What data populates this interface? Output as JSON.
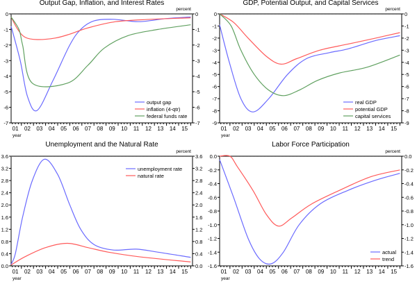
{
  "colors": {
    "blue": "#6a6aff",
    "red": "#ff5a5a",
    "green": "#5fa05f",
    "axis": "#000000"
  },
  "chart_data": [
    {
      "type": "line",
      "title": "Output Gap, Inflation, and Interest Rates",
      "units_label": "percent",
      "xlabel": "year",
      "x_tick_labels": [
        "01",
        "02",
        "03",
        "04",
        "05",
        "06",
        "07",
        "08",
        "09",
        "10",
        "11",
        "12",
        "13",
        "14",
        "15"
      ],
      "ylim": [
        -7,
        0
      ],
      "y_ticks": [
        "0",
        "-1",
        "-2",
        "-3",
        "-4",
        "-5",
        "-6",
        "-7"
      ],
      "legend_position": "bottom-right",
      "series": [
        {
          "name": "output gap",
          "color": "#6a6aff",
          "x": [
            2001.15,
            2001.9,
            2002.5,
            2003.3,
            2004.6,
            2006.0,
            2006.9,
            2008.0,
            2009.6,
            2011.7,
            2014.0,
            2016.0
          ],
          "y": [
            -0.8,
            -3.0,
            -5.3,
            -6.2,
            -4.3,
            -2.0,
            -1.0,
            -0.45,
            -0.35,
            -0.5,
            -0.3,
            -0.2
          ]
        },
        {
          "name": "inflation (4-qtr)",
          "color": "#ff5a5a",
          "x": [
            2001.15,
            2001.7,
            2002.3,
            2003.3,
            2004.8,
            2006.0,
            2007.5,
            2009.8,
            2012.7,
            2016.0
          ],
          "y": [
            -0.2,
            -1.0,
            -1.5,
            -1.65,
            -1.55,
            -1.3,
            -0.9,
            -0.5,
            -0.35,
            -0.25
          ]
        },
        {
          "name": "federal funds rate",
          "color": "#5fa05f",
          "x": [
            2001.15,
            2001.8,
            2002.1,
            2002.9,
            2005.8,
            2007.5,
            2008.85,
            2010.8,
            2013.3,
            2016.0
          ],
          "y": [
            -0.2,
            -1.0,
            -2.0,
            -4.45,
            -4.45,
            -3.3,
            -2.2,
            -1.4,
            -1.0,
            -0.7
          ]
        }
      ]
    },
    {
      "type": "line",
      "title": "GDP, Potential Output, and Capital Services",
      "units_label": "percent",
      "xlabel": "year",
      "x_tick_labels": [
        "01",
        "02",
        "03",
        "04",
        "05",
        "06",
        "07",
        "08",
        "09",
        "10",
        "11",
        "12",
        "13",
        "14",
        "15"
      ],
      "ylim": [
        -9,
        0
      ],
      "y_ticks": [
        "0",
        "-1",
        "-2",
        "-3",
        "-4",
        "-5",
        "-6",
        "-7",
        "-8",
        "-9"
      ],
      "legend_position": "bottom-right",
      "series": [
        {
          "name": "real GDP",
          "color": "#6a6aff",
          "x": [
            2001.15,
            2001.95,
            2002.9,
            2003.9,
            2005.2,
            2006.75,
            2008.3,
            2010.2,
            2011.7,
            2014.0,
            2016.0
          ],
          "y": [
            -0.9,
            -4.0,
            -7.0,
            -8.1,
            -7.0,
            -5.0,
            -3.7,
            -3.2,
            -2.9,
            -2.2,
            -1.8
          ]
        },
        {
          "name": "potential GDP",
          "color": "#ff5a5a",
          "x": [
            2001.15,
            2002.3,
            2003.5,
            2005.0,
            2006.2,
            2007.5,
            2009.4,
            2011.7,
            2014.0,
            2016.0
          ],
          "y": [
            0,
            -0.7,
            -2.0,
            -3.5,
            -4.15,
            -3.7,
            -3.0,
            -2.5,
            -2.0,
            -1.55
          ]
        },
        {
          "name": "capital services",
          "color": "#5fa05f",
          "x": [
            2001.15,
            2002.1,
            2002.9,
            2004.0,
            2005.2,
            2006.4,
            2007.7,
            2009.2,
            2010.95,
            2013.3,
            2016.0
          ],
          "y": [
            0,
            -1.0,
            -3.0,
            -5.0,
            -6.3,
            -6.75,
            -6.3,
            -5.5,
            -4.9,
            -4.4,
            -3.4
          ]
        }
      ]
    },
    {
      "type": "line",
      "title": "Unemployment and the Natural Rate",
      "units_label": "percent",
      "xlabel": "year",
      "x_tick_labels": [
        "01",
        "02",
        "03",
        "04",
        "05",
        "06",
        "07",
        "08",
        "09",
        "10",
        "11",
        "12",
        "13",
        "14",
        "15"
      ],
      "ylim": [
        0,
        3.6
      ],
      "y_ticks": [
        "3.6",
        "3.2",
        "2.8",
        "2.4",
        "2.0",
        "1.6",
        "1.2",
        "0.8",
        "0.4",
        "0.0"
      ],
      "legend_position": "top-right",
      "series": [
        {
          "name": "unemployment rate",
          "color": "#6a6aff",
          "x": [
            2001.15,
            2001.5,
            2002.1,
            2002.9,
            2003.9,
            2005.0,
            2006.0,
            2006.9,
            2008.0,
            2009.6,
            2011.5,
            2013.3,
            2016.0
          ],
          "y": [
            0.05,
            0.4,
            1.6,
            2.8,
            3.5,
            3.0,
            2.0,
            1.2,
            0.7,
            0.52,
            0.55,
            0.45,
            0.28
          ]
        },
        {
          "name": "natural rate",
          "color": "#ff5a5a",
          "x": [
            2001.15,
            2002.3,
            2004.0,
            2005.8,
            2007.5,
            2009.2,
            2011.7,
            2016.0
          ],
          "y": [
            0.03,
            0.3,
            0.6,
            0.74,
            0.6,
            0.45,
            0.3,
            0.13
          ]
        }
      ]
    },
    {
      "type": "line",
      "title": "Labor Force Participation",
      "units_label": "percent",
      "xlabel": "year",
      "x_tick_labels": [
        "01",
        "02",
        "03",
        "04",
        "05",
        "06",
        "07",
        "08",
        "09",
        "10",
        "11",
        "12",
        "13",
        "14",
        "15"
      ],
      "ylim": [
        -1.6,
        0
      ],
      "y_ticks": [
        "0.0",
        "-0.2",
        "-0.4",
        "-0.6",
        "-0.8",
        "-1.0",
        "-1.2",
        "-1.4",
        "-1.6"
      ],
      "legend_position": "bottom-right",
      "series": [
        {
          "name": "actual",
          "color": "#6a6aff",
          "x": [
            2001.15,
            2002.3,
            2003.5,
            2004.45,
            2005.4,
            2006.4,
            2007.7,
            2009.4,
            2011.7,
            2014.0,
            2016.0
          ],
          "y": [
            -0.05,
            -0.6,
            -1.2,
            -1.5,
            -1.57,
            -1.4,
            -1.0,
            -0.7,
            -0.5,
            -0.35,
            -0.25
          ]
        },
        {
          "name": "trend",
          "color": "#ff5a5a",
          "x": [
            2001.15,
            2002.0,
            2002.6,
            2003.9,
            2005.0,
            2006.0,
            2007.1,
            2008.7,
            2011.0,
            2013.6,
            2016.0
          ],
          "y": [
            0,
            0,
            -0.15,
            -0.5,
            -0.85,
            -1.02,
            -0.9,
            -0.7,
            -0.5,
            -0.3,
            -0.2
          ]
        }
      ]
    }
  ]
}
